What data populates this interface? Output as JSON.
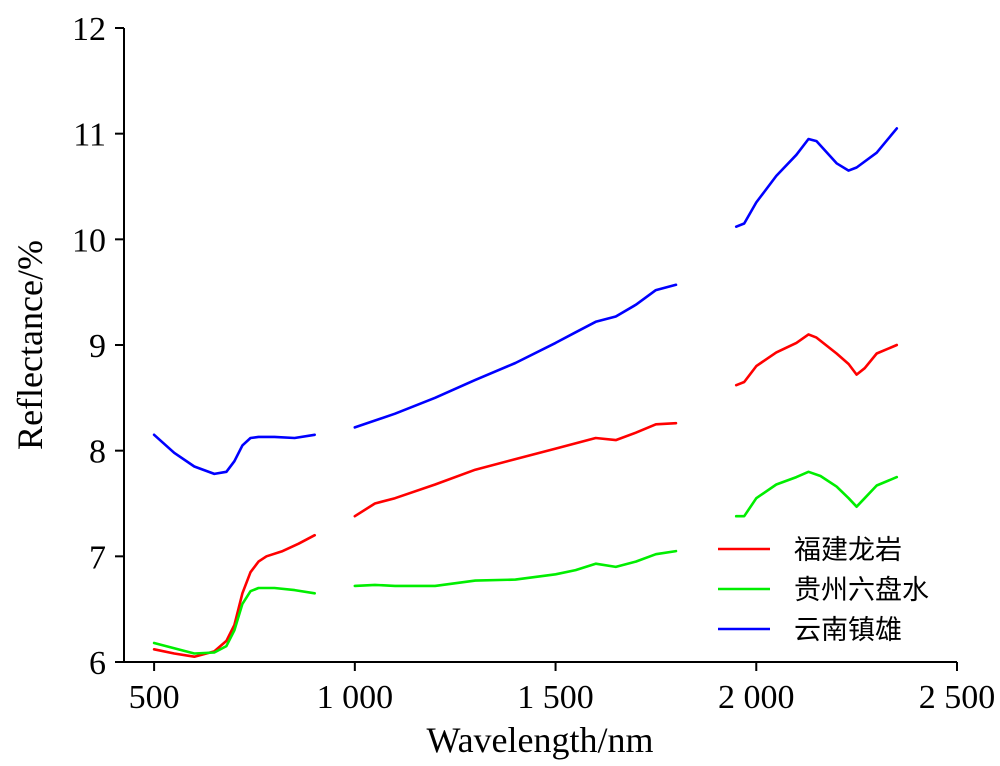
{
  "chart_data": {
    "type": "line",
    "xlabel": "Wavelength/nm",
    "ylabel": "Reflectance/%",
    "xlim": [
      425,
      2500
    ],
    "ylim": [
      6,
      12
    ],
    "x_ticks": [
      500,
      1000,
      1500,
      2000,
      2500
    ],
    "x_tick_labels": [
      "500",
      "1 000",
      "1 500",
      "2 000",
      "2 500"
    ],
    "y_ticks": [
      6,
      7,
      8,
      9,
      10,
      11,
      12
    ],
    "y_tick_labels": [
      "6",
      "7",
      "8",
      "9",
      "10",
      "11",
      "12"
    ],
    "grid": false,
    "legend_position": "bottom-right",
    "series": [
      {
        "name": "福建龙岩",
        "color": "#ff0000",
        "segments": [
          [
            [
              500,
              6.12
            ],
            [
              550,
              6.08
            ],
            [
              600,
              6.05
            ],
            [
              650,
              6.1
            ],
            [
              680,
              6.2
            ],
            [
              700,
              6.35
            ],
            [
              720,
              6.65
            ],
            [
              740,
              6.85
            ],
            [
              760,
              6.95
            ],
            [
              780,
              7.0
            ],
            [
              820,
              7.05
            ],
            [
              860,
              7.12
            ],
            [
              900,
              7.2
            ]
          ],
          [
            [
              1000,
              7.38
            ],
            [
              1050,
              7.5
            ],
            [
              1100,
              7.55
            ],
            [
              1200,
              7.68
            ],
            [
              1300,
              7.82
            ],
            [
              1400,
              7.92
            ],
            [
              1500,
              8.02
            ],
            [
              1600,
              8.12
            ],
            [
              1650,
              8.1
            ],
            [
              1700,
              8.17
            ],
            [
              1750,
              8.25
            ],
            [
              1800,
              8.26
            ]
          ],
          [
            [
              1950,
              8.62
            ],
            [
              1970,
              8.65
            ],
            [
              2000,
              8.8
            ],
            [
              2050,
              8.93
            ],
            [
              2100,
              9.02
            ],
            [
              2130,
              9.1
            ],
            [
              2150,
              9.07
            ],
            [
              2200,
              8.92
            ],
            [
              2230,
              8.82
            ],
            [
              2250,
              8.72
            ],
            [
              2270,
              8.78
            ],
            [
              2300,
              8.92
            ],
            [
              2350,
              9.0
            ]
          ]
        ]
      },
      {
        "name": "贵州六盘水",
        "color": "#00ee00",
        "segments": [
          [
            [
              500,
              6.18
            ],
            [
              550,
              6.13
            ],
            [
              600,
              6.08
            ],
            [
              650,
              6.09
            ],
            [
              680,
              6.15
            ],
            [
              700,
              6.3
            ],
            [
              720,
              6.55
            ],
            [
              740,
              6.67
            ],
            [
              760,
              6.7
            ],
            [
              800,
              6.7
            ],
            [
              850,
              6.68
            ],
            [
              900,
              6.65
            ]
          ],
          [
            [
              1000,
              6.72
            ],
            [
              1050,
              6.73
            ],
            [
              1100,
              6.72
            ],
            [
              1200,
              6.72
            ],
            [
              1300,
              6.77
            ],
            [
              1400,
              6.78
            ],
            [
              1500,
              6.83
            ],
            [
              1550,
              6.87
            ],
            [
              1600,
              6.93
            ],
            [
              1650,
              6.9
            ],
            [
              1700,
              6.95
            ],
            [
              1750,
              7.02
            ],
            [
              1800,
              7.05
            ]
          ],
          [
            [
              1950,
              7.38
            ],
            [
              1970,
              7.38
            ],
            [
              2000,
              7.55
            ],
            [
              2050,
              7.68
            ],
            [
              2100,
              7.75
            ],
            [
              2130,
              7.8
            ],
            [
              2160,
              7.76
            ],
            [
              2200,
              7.66
            ],
            [
              2230,
              7.55
            ],
            [
              2250,
              7.47
            ],
            [
              2270,
              7.55
            ],
            [
              2300,
              7.67
            ],
            [
              2350,
              7.75
            ]
          ]
        ]
      },
      {
        "name": "云南镇雄",
        "color": "#0000ff",
        "segments": [
          [
            [
              500,
              8.15
            ],
            [
              550,
              7.98
            ],
            [
              600,
              7.85
            ],
            [
              650,
              7.78
            ],
            [
              680,
              7.8
            ],
            [
              700,
              7.9
            ],
            [
              720,
              8.05
            ],
            [
              740,
              8.12
            ],
            [
              760,
              8.13
            ],
            [
              800,
              8.13
            ],
            [
              850,
              8.12
            ],
            [
              900,
              8.15
            ]
          ],
          [
            [
              1000,
              8.22
            ],
            [
              1100,
              8.35
            ],
            [
              1200,
              8.5
            ],
            [
              1300,
              8.67
            ],
            [
              1400,
              8.83
            ],
            [
              1500,
              9.02
            ],
            [
              1550,
              9.12
            ],
            [
              1600,
              9.22
            ],
            [
              1650,
              9.27
            ],
            [
              1700,
              9.38
            ],
            [
              1750,
              9.52
            ],
            [
              1800,
              9.57
            ]
          ],
          [
            [
              1950,
              10.12
            ],
            [
              1970,
              10.15
            ],
            [
              2000,
              10.35
            ],
            [
              2050,
              10.6
            ],
            [
              2100,
              10.8
            ],
            [
              2130,
              10.95
            ],
            [
              2150,
              10.93
            ],
            [
              2200,
              10.72
            ],
            [
              2230,
              10.65
            ],
            [
              2250,
              10.68
            ],
            [
              2300,
              10.82
            ],
            [
              2350,
              11.05
            ]
          ]
        ]
      }
    ]
  }
}
